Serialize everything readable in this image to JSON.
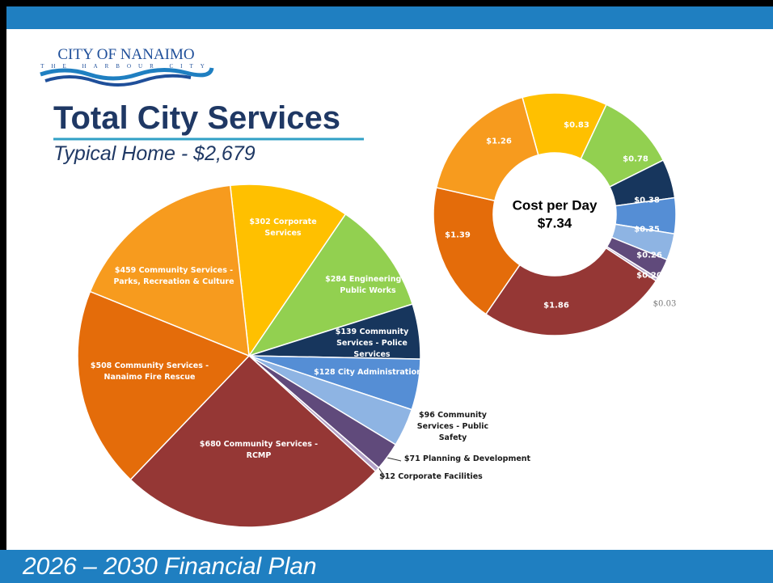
{
  "logo": {
    "name": "CITY OF NANAIMO",
    "tagline": "THE HARBOUR CITY"
  },
  "title": "Total City Services",
  "subtitle": "Typical Home - $2,679",
  "footer": "2026 – 2030 Financial Plan",
  "chart_data": [
    {
      "type": "pie",
      "categories": [
        "Corporate Services",
        "Engineering & Public Works",
        "Community Services - Police Services",
        "City Administration",
        "Community Services - Public Safety",
        "Planning & Development",
        "Corporate Facilities",
        "Community Services - RCMP",
        "Community Services - Nanaimo Fire Rescue",
        "Community Services - Parks, Recreation & Culture"
      ],
      "values": [
        302,
        284,
        139,
        128,
        96,
        71,
        12,
        680,
        508,
        459
      ],
      "value_labels": [
        "$302",
        "$284",
        "$139",
        "$128",
        "$96",
        "$71",
        "$12",
        "$680",
        "$508",
        "$459"
      ],
      "colors": [
        "#ffc000",
        "#92d050",
        "#17365d",
        "#558ed5",
        "#8eb4e3",
        "#604a7b",
        "#b3a2c7",
        "#953735",
        "#e46c0a",
        "#f79b1e"
      ]
    },
    {
      "type": "donut",
      "center_title": "Cost per Day",
      "center_value": "$7.34",
      "values": [
        0.83,
        0.78,
        0.38,
        0.35,
        0.26,
        0.2,
        0.03,
        1.86,
        1.39,
        1.26
      ],
      "value_labels": [
        "$0.83",
        "$0.78",
        "$0.38",
        "$0.35",
        "$0.26",
        "$0.20",
        "$0.03",
        "$1.86",
        "$1.39",
        "$1.26"
      ],
      "colors": [
        "#ffc000",
        "#92d050",
        "#17365d",
        "#558ed5",
        "#8eb4e3",
        "#604a7b",
        "#b3a2c7",
        "#953735",
        "#e46c0a",
        "#f79b1e"
      ]
    }
  ]
}
